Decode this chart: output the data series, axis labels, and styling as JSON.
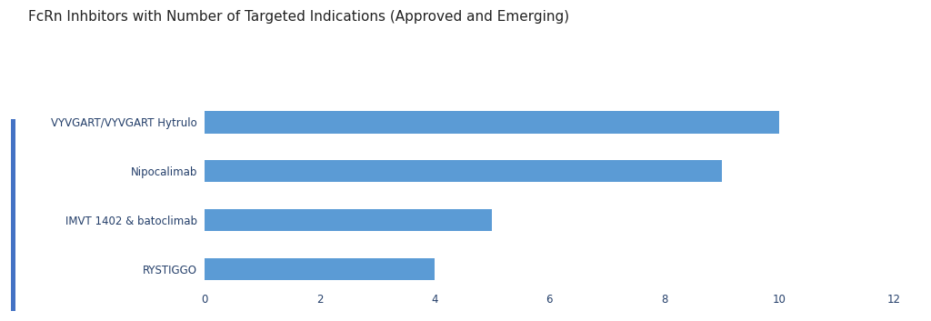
{
  "title": "FcRn Inhbitors with Number of Targeted Indications (Approved and Emerging)",
  "categories": [
    "RYSTIGGO",
    "IMVT 1402 & batoclimab",
    "Nipocalimab",
    "VYVGART/VYVGART Hytrulo"
  ],
  "values": [
    4,
    5,
    9,
    10
  ],
  "bar_color": "#5B9BD5",
  "label_color": "#243F6A",
  "title_color": "#222222",
  "title_fontsize": 11,
  "label_fontsize": 8.5,
  "tick_fontsize": 8.5,
  "xlim": [
    0,
    12
  ],
  "xticks": [
    0,
    2,
    4,
    6,
    8,
    10,
    12
  ],
  "background_color": "#ffffff",
  "accent_bar_color": "#4472C4",
  "bar_height": 0.45
}
